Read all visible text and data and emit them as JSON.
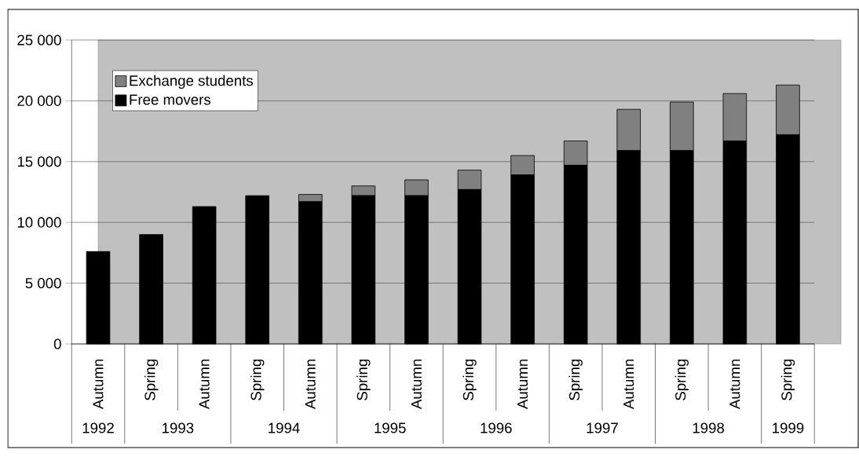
{
  "chart_data": {
    "type": "bar",
    "stacked": true,
    "categories": [
      "Autumn",
      "Spring",
      "Autumn",
      "Spring",
      "Autumn",
      "Spring",
      "Autumn",
      "Spring",
      "Autumn",
      "Spring",
      "Autumn",
      "Spring",
      "Autumn",
      "Spring"
    ],
    "series": [
      {
        "name": "Free movers",
        "color": "#000000",
        "values": [
          7600,
          9000,
          11300,
          12200,
          11700,
          12200,
          12200,
          12700,
          13900,
          14700,
          15900,
          15900,
          16700,
          17200
        ]
      },
      {
        "name": "Exchange students",
        "color": "#808080",
        "values": [
          0,
          0,
          0,
          0,
          600,
          800,
          1300,
          1600,
          1600,
          2000,
          3400,
          4000,
          3900,
          4100
        ]
      }
    ],
    "ylim": [
      0,
      25000
    ],
    "yticks": [
      0,
      {
        "value": 5000,
        "label": "5 000"
      },
      {
        "value": 10000,
        "label": "10 000"
      },
      {
        "value": 15000,
        "label": "15 000"
      },
      {
        "value": 20000,
        "label": "20 000"
      },
      {
        "value": 25000,
        "label": "25 000"
      }
    ],
    "grid": "y",
    "legend": "top left",
    "annotations": [
      "1992",
      "1993",
      "1994",
      "1995",
      "1996",
      "1997",
      "1998",
      "1999"
    ]
  }
}
